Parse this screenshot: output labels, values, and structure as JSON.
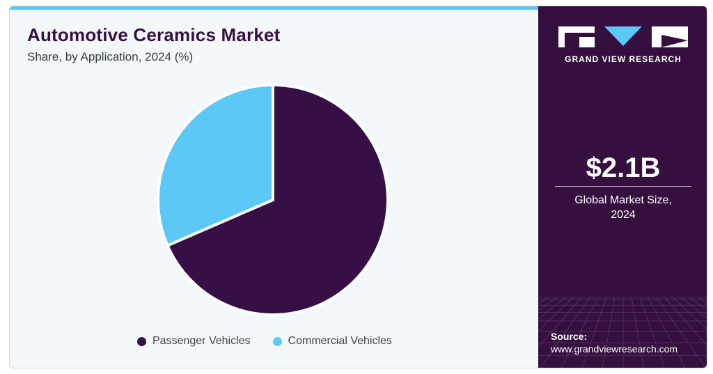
{
  "header": {
    "title": "Automotive Ceramics Market",
    "subtitle": "Share, by Application, 2024 (%)"
  },
  "colors": {
    "passenger": "#360f46",
    "commercial": "#5bc8f5",
    "sidebar_bg": "#35103f",
    "accent": "#5bc8f5"
  },
  "chart_data": {
    "type": "pie",
    "title": "Automotive Ceramics Market",
    "subtitle": "Share, by Application, 2024 (%)",
    "categories": [
      "Passenger Vehicles",
      "Commercial Vehicles"
    ],
    "values": [
      68.5,
      31.5
    ],
    "legend": "bottom"
  },
  "sidebar": {
    "brand": "GRAND VIEW RESEARCH",
    "market_size_value": "$2.1B",
    "market_size_label_line1": "Global Market Size,",
    "market_size_label_line2": "2024",
    "source_label": "Source:",
    "source_url": "www.grandviewresearch.com"
  }
}
